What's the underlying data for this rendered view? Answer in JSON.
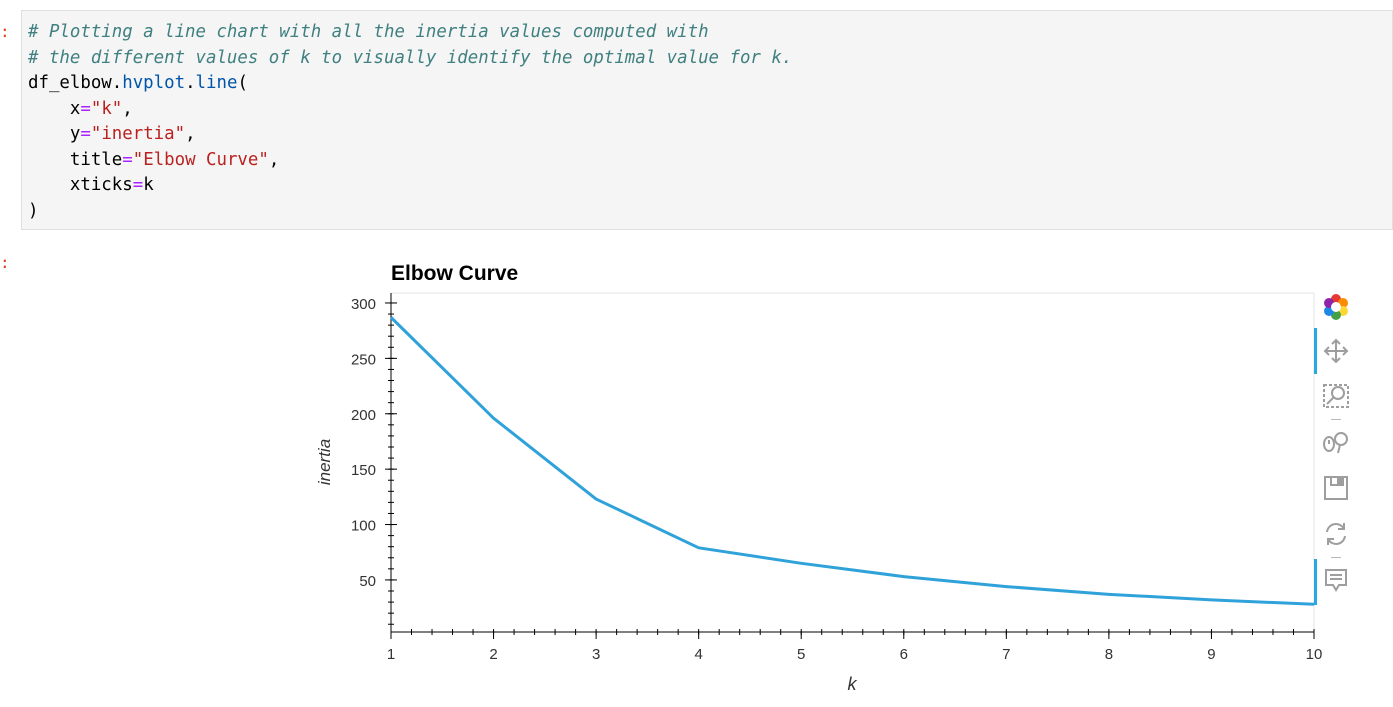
{
  "prompts": {
    "input": ":",
    "output": ":"
  },
  "code_cell": {
    "lines": [
      [
        {
          "t": "# Plotting a line chart with all the inertia values computed with",
          "c": "comment"
        }
      ],
      [
        {
          "t": "# the different values of k to visually identify the optimal value for k.",
          "c": "comment"
        }
      ],
      [
        {
          "t": "df_elbow.",
          "c": "plain"
        },
        {
          "t": "hvplot",
          "c": "attr"
        },
        {
          "t": ".",
          "c": "plain"
        },
        {
          "t": "line",
          "c": "attr"
        },
        {
          "t": "(",
          "c": "plain"
        }
      ],
      [
        {
          "t": "    x",
          "c": "plain"
        },
        {
          "t": "=",
          "c": "op"
        },
        {
          "t": "\"k\"",
          "c": "str"
        },
        {
          "t": ",",
          "c": "plain"
        }
      ],
      [
        {
          "t": "    y",
          "c": "plain"
        },
        {
          "t": "=",
          "c": "op"
        },
        {
          "t": "\"inertia\"",
          "c": "str"
        },
        {
          "t": ",",
          "c": "plain"
        }
      ],
      [
        {
          "t": "    title",
          "c": "plain"
        },
        {
          "t": "=",
          "c": "op"
        },
        {
          "t": "\"Elbow Curve\"",
          "c": "str"
        },
        {
          "t": ",",
          "c": "plain"
        }
      ],
      [
        {
          "t": "    xticks",
          "c": "plain"
        },
        {
          "t": "=",
          "c": "op"
        },
        {
          "t": "k",
          "c": "plain"
        }
      ],
      [
        {
          "t": ")",
          "c": "plain"
        }
      ]
    ]
  },
  "chart_data": {
    "type": "line",
    "title": "Elbow Curve",
    "xlabel": "k",
    "ylabel": "inertia",
    "x": [
      1,
      2,
      3,
      4,
      5,
      6,
      7,
      8,
      9,
      10
    ],
    "series": [
      {
        "values": [
          287,
          196,
          123,
          79,
          65,
          53,
          44,
          37,
          32,
          28
        ],
        "color": "#30a2da"
      }
    ],
    "xticks": [
      "1",
      "2",
      "3",
      "4",
      "5",
      "6",
      "7",
      "8",
      "9",
      "10"
    ],
    "yticks": [
      "50",
      "100",
      "150",
      "200",
      "250",
      "300"
    ],
    "ytick_values": [
      50,
      100,
      150,
      200,
      250,
      300
    ],
    "xlim": [
      1,
      10
    ],
    "ylim": [
      3,
      309
    ],
    "grid": false,
    "legend": "none"
  },
  "toolbar": {
    "tools": [
      {
        "name": "bokeh-logo-icon",
        "active": false
      },
      {
        "name": "pan-icon",
        "active": true
      },
      {
        "name": "box-zoom-icon",
        "active": false
      },
      {
        "name": "wheel-zoom-icon",
        "active": false
      },
      {
        "name": "save-icon",
        "active": false
      },
      {
        "name": "reset-icon",
        "active": false
      },
      {
        "name": "hover-icon",
        "active": true
      }
    ]
  },
  "colors": {
    "accent": "#26aae1",
    "line": "#30a2da",
    "prompt": "#d84315"
  }
}
